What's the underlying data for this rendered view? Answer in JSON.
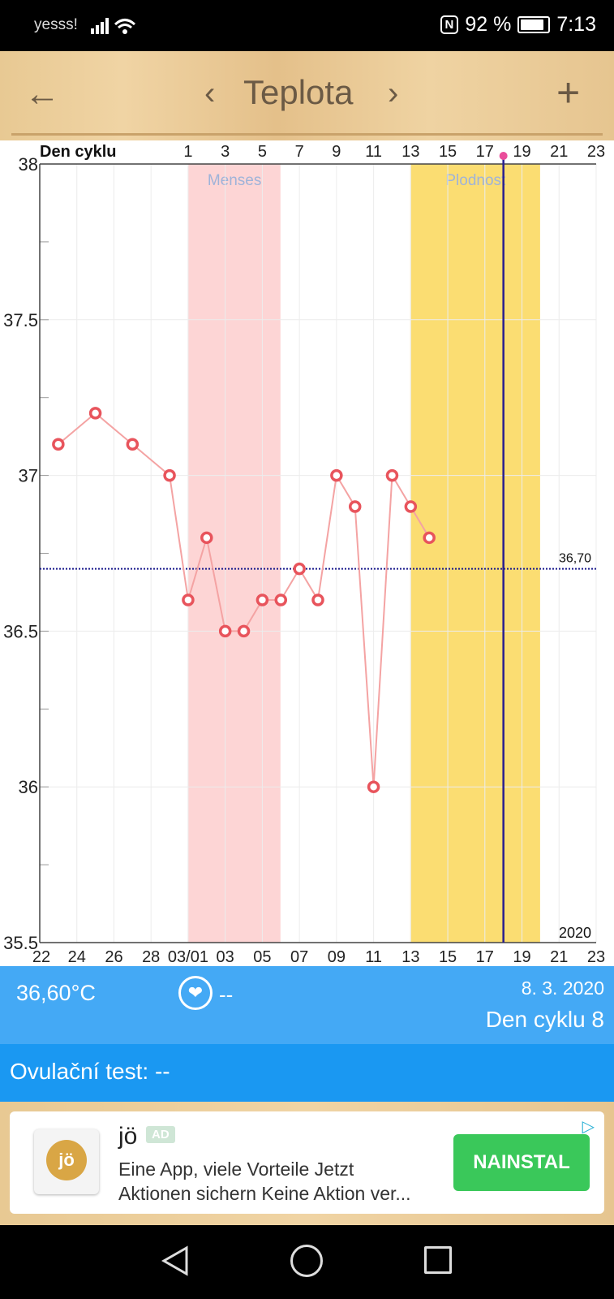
{
  "status_bar": {
    "carrier": "yesss!",
    "battery_percent": "92 %",
    "time": "7:13"
  },
  "app_bar": {
    "title": "Teplota",
    "back_icon": "arrow-left-icon",
    "prev_icon": "chevron-left-icon",
    "next_icon": "chevron-right-icon",
    "add_icon": "plus-icon"
  },
  "chart_data": {
    "type": "line",
    "top_axis_label": "Den cyklu",
    "top_ticks": [
      "1",
      "3",
      "5",
      "7",
      "9",
      "11",
      "13",
      "15",
      "17",
      "19",
      "21",
      "23"
    ],
    "bottom_ticks": [
      "22",
      "24",
      "26",
      "28",
      "03/01",
      "03",
      "05",
      "07",
      "09",
      "11",
      "13",
      "15",
      "17",
      "19",
      "21",
      "23"
    ],
    "y_ticks": [
      "38",
      "37.5",
      "37",
      "36.5",
      "36",
      "35.5"
    ],
    "ylim": [
      35.5,
      38
    ],
    "year_label": "2020",
    "reference_line": {
      "value": 36.7,
      "label": "36,70"
    },
    "bands": [
      {
        "label": "Menses",
        "from_day_index": 8,
        "to_day_index": 13,
        "color": "#fdd5d5"
      },
      {
        "label": "Plodnost",
        "from_day_index": 20,
        "to_day_index": 27,
        "color": "#fbdd72"
      }
    ],
    "current_day_index": 25,
    "series": [
      {
        "day_index": [
          1,
          3,
          5,
          7,
          8,
          9,
          10,
          11,
          12,
          13,
          14,
          15,
          16,
          17,
          18,
          19,
          20,
          21
        ],
        "values": [
          37.1,
          37.2,
          37.1,
          37.0,
          36.6,
          36.8,
          36.5,
          36.5,
          36.6,
          36.6,
          36.7,
          36.6,
          37.0,
          36.9,
          36.0,
          37.0,
          36.9,
          36.8
        ]
      }
    ],
    "colors": {
      "line": "#f4a3a3",
      "marker": "#e8545c",
      "reference": "#1a1a8c",
      "current_day": "#2a1f8f",
      "current_day_dot": "#ea4d9b"
    }
  },
  "info_panel": {
    "temperature": "36,60°C",
    "heart_value": "--",
    "date": "8. 3. 2020",
    "cycle_day": "Den cyklu 8"
  },
  "ovulation": {
    "label": "Ovulační test: --"
  },
  "ad": {
    "logo_text": "jö",
    "brand": "jö",
    "badge": "AD",
    "line1": "Eine App, viele Vorteile Jetzt",
    "line2": "Aktionen sichern Keine Aktion ver...",
    "cta": "NAINSTAL",
    "adchoices_icon": "adchoices-icon"
  }
}
